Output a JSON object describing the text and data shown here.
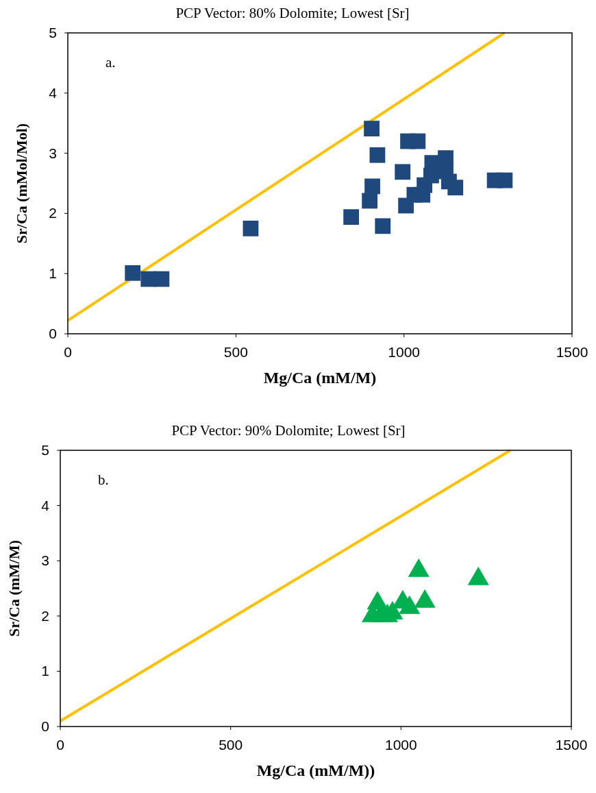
{
  "chart_data": [
    {
      "type": "scatter",
      "title": "PCP Vector: 80% Dolomite; Lowest [Sr]",
      "xlabel": "Mg/Ca (mM/M)",
      "ylabel": "Sr/Ca (mMol/Mol)",
      "annotations": [
        "a."
      ],
      "xlim": [
        0,
        1500
      ],
      "xticks": [
        0,
        500,
        1000,
        1500
      ],
      "ylim": [
        0,
        5
      ],
      "yticks": [
        0,
        1,
        2,
        3,
        4,
        5
      ],
      "grid": false,
      "series": [
        {
          "type": "line",
          "color": "#ffc000",
          "x": [
            0,
            1299
          ],
          "values": [
            0.22,
            5
          ]
        },
        {
          "color": "#1f497d",
          "marker": "square",
          "x": [
            193,
            240,
            279,
            544,
            904,
            1012,
            1041,
            921,
            996,
            906,
            898,
            843,
            937,
            1006,
            1031,
            1055,
            1061,
            1081,
            1084,
            1124,
            1124,
            1134,
            1153,
            1270,
            1300
          ],
          "values": [
            1.01,
            0.91,
            0.91,
            1.75,
            3.41,
            3.2,
            3.2,
            2.97,
            2.69,
            2.45,
            2.21,
            1.94,
            1.79,
            2.13,
            2.31,
            2.31,
            2.47,
            2.63,
            2.84,
            2.92,
            2.7,
            2.53,
            2.43,
            2.55,
            2.55
          ]
        }
      ]
    },
    {
      "type": "scatter",
      "title": "PCP Vector: 90% Dolomite; Lowest [Sr]",
      "xlabel": "Mg/Ca (mM/M))",
      "ylabel": "Sr/Ca (mM/M)",
      "annotations": [
        "b."
      ],
      "xlim": [
        0,
        1500
      ],
      "xticks": [
        0,
        500,
        1000,
        1500
      ],
      "ylim": [
        0,
        5
      ],
      "yticks": [
        0,
        1,
        2,
        3,
        4,
        5
      ],
      "grid": false,
      "series": [
        {
          "type": "line",
          "color": "#ffc000",
          "x": [
            0,
            1321
          ],
          "values": [
            0.1,
            5
          ]
        },
        {
          "color": "#00b050",
          "marker": "triangle",
          "x": [
            1052,
            1227,
            1070,
            931,
            1005,
            916,
            940,
            960,
            975,
            1025
          ],
          "values": [
            2.82,
            2.67,
            2.26,
            2.23,
            2.25,
            2.0,
            2.0,
            2.0,
            2.05,
            2.15
          ]
        }
      ]
    }
  ]
}
